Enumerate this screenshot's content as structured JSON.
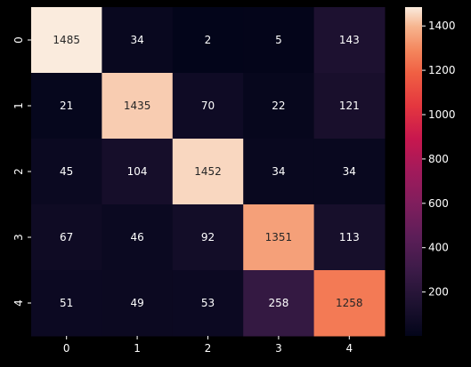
{
  "chart_data": {
    "type": "heatmap",
    "x_categories": [
      "0",
      "1",
      "2",
      "3",
      "4"
    ],
    "y_categories": [
      "0",
      "1",
      "2",
      "3",
      "4"
    ],
    "values": [
      [
        1485,
        34,
        2,
        5,
        143
      ],
      [
        21,
        1435,
        70,
        22,
        121
      ],
      [
        45,
        104,
        1452,
        34,
        34
      ],
      [
        67,
        46,
        92,
        1351,
        113
      ],
      [
        51,
        49,
        53,
        258,
        1258
      ]
    ],
    "value_range": [
      2,
      1485
    ],
    "colormap": "rocket",
    "colorbar_ticks": [
      200,
      400,
      600,
      800,
      1000,
      1200,
      1400
    ],
    "background_color": "#000000",
    "text_color": "#ffffff",
    "annot_dark_text_color": "#262626"
  }
}
